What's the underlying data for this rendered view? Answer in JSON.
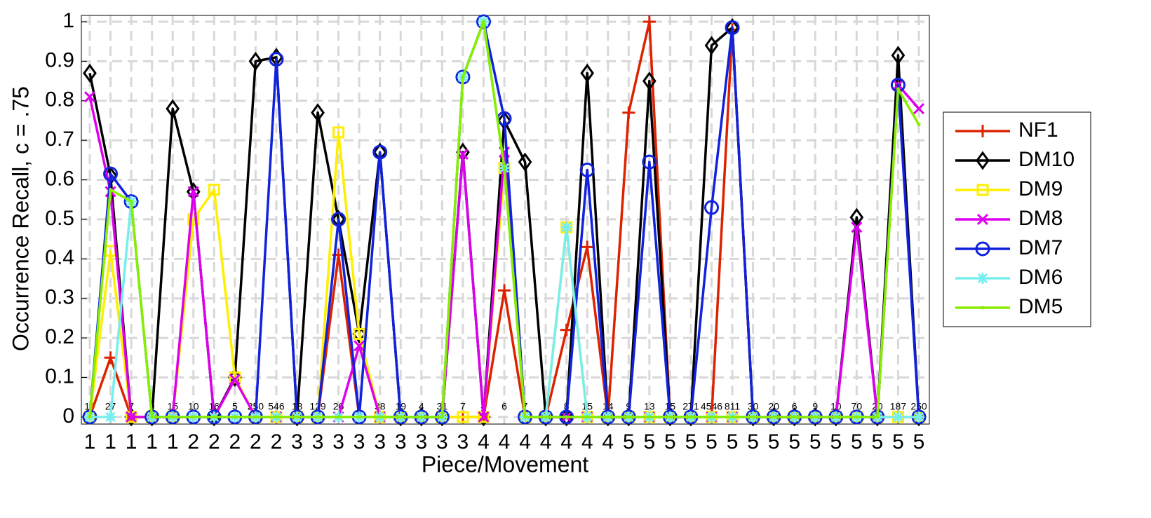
{
  "chart_data": {
    "type": "line",
    "x_label": "Piece/Movement",
    "y_label": "Occurrence Recall, c = .75",
    "categories": [
      "1",
      "1",
      "1",
      "1",
      "1",
      "2",
      "2",
      "2",
      "2",
      "2",
      "3",
      "3",
      "3",
      "3",
      "3",
      "3",
      "3",
      "3",
      "3",
      "4",
      "4",
      "4",
      "4",
      "4",
      "4",
      "4",
      "5",
      "5",
      "5",
      "5",
      "5",
      "5",
      "5",
      "5",
      "5",
      "5",
      "5",
      "5",
      "5",
      "5",
      "5"
    ],
    "point_labels": [
      "17",
      "27",
      "7",
      "9",
      "15",
      "10",
      "16",
      "5",
      "250",
      "546",
      "18",
      "129",
      "26",
      null,
      "38",
      "19",
      "4",
      "31",
      "7",
      "4",
      "6",
      "7",
      "5",
      "8",
      "15",
      "14",
      "9",
      "13",
      "15",
      "271",
      "4546",
      "811",
      "30",
      "20",
      "6",
      "9",
      "10",
      "70",
      "20",
      "187",
      "250"
    ],
    "ylim": [
      -0.018,
      1.016
    ],
    "yticks": [
      0,
      0.1,
      0.2,
      0.3,
      0.4,
      0.5,
      0.6,
      0.7,
      0.8,
      0.9,
      1
    ],
    "grid": true,
    "legend": "right",
    "series": [
      {
        "name": "NF1",
        "color": "#dd2200",
        "marker": "plus",
        "values": [
          0,
          0.15,
          0,
          0,
          0,
          0,
          0,
          0,
          0,
          0,
          0,
          0,
          0.41,
          0,
          0,
          0,
          0,
          0,
          0,
          0,
          0.32,
          0,
          0,
          0.22,
          0.43,
          0,
          0.77,
          1,
          0,
          0,
          0,
          0.98,
          0,
          0,
          0,
          0,
          0,
          0,
          0,
          0,
          0
        ]
      },
      {
        "name": "DM10",
        "color": "#000000",
        "marker": "diamond",
        "values": [
          0.87,
          0.61,
          0,
          0,
          0.78,
          0.57,
          0,
          0.1,
          0.9,
          0.91,
          0,
          0.77,
          0.5,
          0.21,
          0.67,
          0,
          0,
          0,
          0.67,
          0,
          0.75,
          0.645,
          0,
          0,
          0.87,
          0,
          0,
          0.85,
          0,
          0,
          0.94,
          0.985,
          0,
          0,
          0,
          0,
          0,
          0.505,
          0,
          0.915,
          0
        ]
      },
      {
        "name": "DM9",
        "color": "#ffee00",
        "marker": "square",
        "values": [
          0,
          0.42,
          0,
          0,
          0,
          0.5,
          0.575,
          0.1,
          0,
          0,
          0,
          0,
          0.72,
          0.21,
          0,
          0,
          0,
          0,
          0,
          0,
          0.63,
          0,
          0,
          0.48,
          0,
          0,
          0,
          0,
          0,
          0,
          0,
          0,
          0,
          0,
          0,
          0,
          0,
          0,
          0,
          0,
          0
        ]
      },
      {
        "name": "DM8",
        "color": "#dd00ee",
        "marker": "x",
        "values": [
          0.81,
          0.57,
          0,
          0,
          0,
          0.57,
          0,
          0.095,
          0,
          0,
          0,
          0,
          0,
          0.18,
          0,
          0,
          0,
          0,
          0.665,
          0,
          0.67,
          0,
          0,
          0,
          0,
          0,
          0,
          0,
          0,
          0,
          0,
          0,
          0,
          0,
          0,
          0,
          0,
          0.48,
          0,
          0.84,
          0.78
        ]
      },
      {
        "name": "DM7",
        "color": "#1122dd",
        "marker": "circle",
        "values": [
          0,
          0.615,
          0.545,
          0,
          0,
          0,
          0,
          0,
          0,
          0.905,
          0,
          0,
          0.5,
          0,
          0.67,
          0,
          0,
          0,
          0.86,
          1,
          0.755,
          0,
          0,
          0,
          0.625,
          0,
          0,
          0.645,
          0,
          0,
          0.53,
          0.985,
          0,
          0,
          0,
          0,
          0,
          0,
          0,
          0.84,
          0
        ]
      },
      {
        "name": "DM6",
        "color": "#77eeee",
        "marker": "star",
        "values": [
          0,
          0,
          0.545,
          0,
          0,
          0,
          0,
          0,
          0,
          0,
          0,
          0,
          0,
          0,
          0,
          0,
          0,
          0,
          0.86,
          1,
          0.63,
          0,
          0,
          0.48,
          0,
          0,
          0,
          0,
          0,
          0,
          0,
          0,
          0,
          0,
          0,
          0,
          0,
          0,
          0,
          0,
          0
        ]
      },
      {
        "name": "DM5",
        "color": "#88ee00",
        "marker": "dot",
        "values": [
          0,
          0.575,
          0.545,
          0,
          0,
          0,
          0,
          0,
          0,
          0,
          0,
          0,
          0,
          0,
          0,
          0,
          0,
          0,
          0.86,
          1,
          0.63,
          0,
          0,
          0,
          0,
          0,
          0,
          0,
          0,
          0,
          0,
          0,
          0,
          0,
          0,
          0,
          0,
          0,
          0,
          0.83,
          0.74
        ]
      }
    ]
  }
}
